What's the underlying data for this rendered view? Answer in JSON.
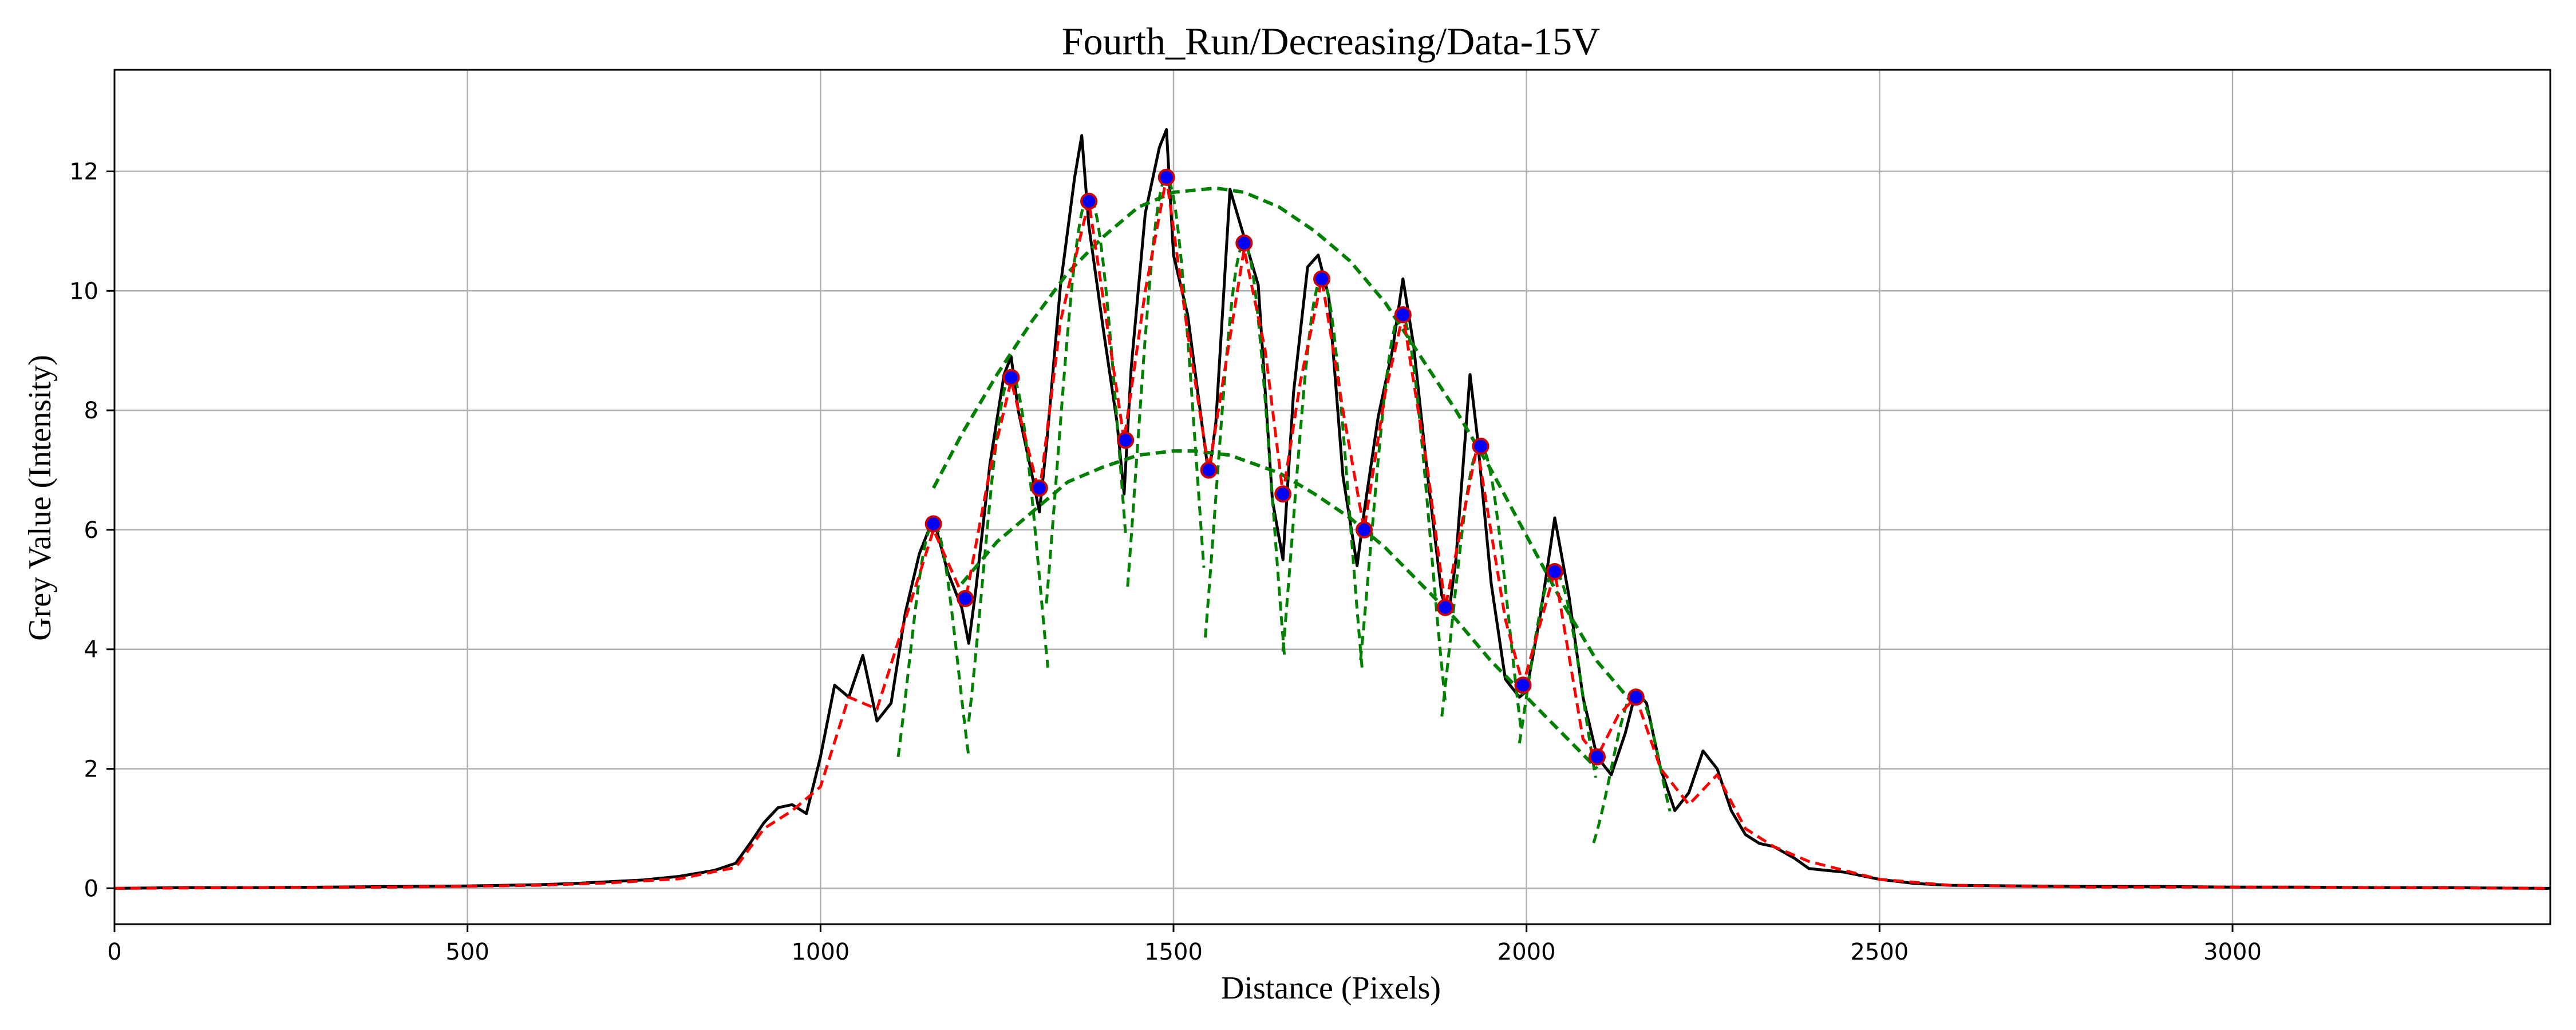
{
  "chart_data": {
    "type": "line",
    "title": "Fourth_Run/Decreasing/Data-15V",
    "xlabel": "Distance (Pixels)",
    "ylabel": "Grey Value (Intensity)",
    "xlim": [
      0,
      3450
    ],
    "ylim": [
      -0.6,
      13.7
    ],
    "grid": true,
    "x_ticks": [
      0,
      500,
      1000,
      1500,
      2000,
      2500,
      3000
    ],
    "x_tick_labels": [
      "0",
      "500",
      "1000",
      "1500",
      "2000",
      "2500",
      "3000"
    ],
    "y_ticks": [
      0,
      2,
      4,
      6,
      8,
      10,
      12
    ],
    "y_tick_labels": [
      "0",
      "2",
      "4",
      "6",
      "8",
      "10",
      "12"
    ],
    "series": [
      {
        "role": "raw_profile",
        "color": "#000000",
        "style": "solid",
        "x": [
          0,
          100,
          200,
          300,
          400,
          500,
          600,
          650,
          700,
          750,
          800,
          850,
          880,
          900,
          920,
          940,
          960,
          980,
          1000,
          1020,
          1040,
          1060,
          1080,
          1100,
          1120,
          1140,
          1160,
          1180,
          1200,
          1210,
          1220,
          1240,
          1260,
          1270,
          1280,
          1300,
          1310,
          1320,
          1340,
          1360,
          1370,
          1380,
          1400,
          1420,
          1430,
          1440,
          1460,
          1480,
          1490,
          1500,
          1520,
          1540,
          1550,
          1560,
          1580,
          1600,
          1620,
          1640,
          1655,
          1670,
          1690,
          1705,
          1720,
          1740,
          1760,
          1770,
          1790,
          1810,
          1825,
          1840,
          1860,
          1880,
          1890,
          1900,
          1920,
          1930,
          1950,
          1970,
          1990,
          2000,
          2020,
          2040,
          2060,
          2080,
          2100,
          2120,
          2140,
          2155,
          2170,
          2190,
          2210,
          2230,
          2250,
          2270,
          2290,
          2310,
          2330,
          2350,
          2380,
          2400,
          2450,
          2500,
          2550,
          2600,
          2700,
          2800,
          2900,
          3000,
          3100,
          3200,
          3300,
          3450
        ],
        "y": [
          0.0,
          0.01,
          0.01,
          0.02,
          0.03,
          0.04,
          0.06,
          0.08,
          0.11,
          0.14,
          0.2,
          0.3,
          0.42,
          0.75,
          1.1,
          1.35,
          1.4,
          1.25,
          2.2,
          3.4,
          3.2,
          3.9,
          2.8,
          3.1,
          4.6,
          5.6,
          6.2,
          5.3,
          4.7,
          4.1,
          5.0,
          7.1,
          8.6,
          8.9,
          8.0,
          6.9,
          6.3,
          7.4,
          10.1,
          11.9,
          12.6,
          11.1,
          9.4,
          7.8,
          6.6,
          8.7,
          11.3,
          12.4,
          12.7,
          10.6,
          9.6,
          7.8,
          6.9,
          7.8,
          11.7,
          10.9,
          10.1,
          6.5,
          5.5,
          8.3,
          10.4,
          10.6,
          9.9,
          6.9,
          5.4,
          6.3,
          7.9,
          9.0,
          10.2,
          9.1,
          6.9,
          4.9,
          4.6,
          5.5,
          8.6,
          7.6,
          5.1,
          3.5,
          3.2,
          3.3,
          4.6,
          6.2,
          4.9,
          3.2,
          2.2,
          1.9,
          2.6,
          3.3,
          3.1,
          2.0,
          1.3,
          1.6,
          2.3,
          2.0,
          1.3,
          0.9,
          0.75,
          0.7,
          0.5,
          0.33,
          0.27,
          0.15,
          0.08,
          0.05,
          0.04,
          0.03,
          0.03,
          0.02,
          0.02,
          0.01,
          0.01,
          0.0
        ]
      },
      {
        "role": "smoothed_profile",
        "color": "#ff0000",
        "style": "dashed",
        "x": [
          0,
          200,
          400,
          600,
          700,
          800,
          880,
          920,
          960,
          1000,
          1040,
          1080,
          1120,
          1160,
          1205,
          1240,
          1270,
          1310,
          1340,
          1380,
          1430,
          1460,
          1490,
          1520,
          1550,
          1600,
          1630,
          1655,
          1680,
          1710,
          1740,
          1770,
          1800,
          1825,
          1860,
          1885,
          1930,
          1970,
          1995,
          2040,
          2080,
          2100,
          2130,
          2155,
          2190,
          2230,
          2270,
          2310,
          2350,
          2400,
          2500,
          2600,
          2800,
          3000,
          3200,
          3450
        ],
        "y": [
          0.0,
          0.01,
          0.02,
          0.05,
          0.09,
          0.16,
          0.35,
          1.0,
          1.3,
          1.7,
          3.2,
          3.0,
          4.5,
          6.0,
          4.8,
          7.0,
          8.5,
          6.6,
          9.5,
          11.5,
          7.5,
          10.0,
          11.9,
          9.3,
          7.0,
          10.7,
          9.0,
          6.6,
          8.5,
          10.2,
          8.0,
          6.0,
          8.3,
          9.6,
          7.0,
          4.7,
          7.4,
          4.5,
          3.4,
          5.3,
          2.5,
          2.2,
          2.9,
          3.2,
          2.0,
          1.4,
          1.9,
          1.0,
          0.7,
          0.45,
          0.15,
          0.05,
          0.02,
          0.02,
          0.01,
          0.0
        ]
      },
      {
        "role": "upper_envelope_fit",
        "color": "#008000",
        "style": "dashed",
        "x": [
          1160,
          1200,
          1250,
          1300,
          1350,
          1400,
          1450,
          1500,
          1560,
          1600,
          1650,
          1700,
          1750,
          1800,
          1850,
          1900,
          1950,
          2000,
          2050,
          2100,
          2150
        ],
        "y": [
          6.7,
          7.6,
          8.6,
          9.5,
          10.3,
          10.9,
          11.4,
          11.65,
          11.72,
          11.65,
          11.4,
          11.0,
          10.5,
          9.8,
          8.9,
          8.0,
          7.0,
          5.9,
          4.8,
          3.8,
          3.1
        ]
      },
      {
        "role": "lower_envelope_fit",
        "color": "#008000",
        "style": "dashed",
        "x": [
          1200,
          1250,
          1300,
          1350,
          1400,
          1450,
          1500,
          1530,
          1580,
          1650,
          1700,
          1750,
          1800,
          1850,
          1900,
          1950,
          2000,
          2050,
          2100
        ],
        "y": [
          5.1,
          5.8,
          6.3,
          6.8,
          7.05,
          7.25,
          7.32,
          7.32,
          7.25,
          6.95,
          6.6,
          6.2,
          5.7,
          5.1,
          4.5,
          3.8,
          3.2,
          2.6,
          2.0
        ]
      }
    ],
    "peak_fits": {
      "color": "#008000",
      "style": "dashed",
      "curves": [
        {
          "center": 1380,
          "height": 11.6,
          "width": 45,
          "x_range": [
            1320,
            1435
          ]
        },
        {
          "center": 1490,
          "height": 11.9,
          "width": 42,
          "x_range": [
            1435,
            1545
          ]
        },
        {
          "center": 1600,
          "height": 10.8,
          "width": 40,
          "x_range": [
            1545,
            1660
          ]
        },
        {
          "center": 1710,
          "height": 10.2,
          "width": 40,
          "x_range": [
            1655,
            1770
          ]
        },
        {
          "center": 1822,
          "height": 9.6,
          "width": 42,
          "x_range": [
            1765,
            1885
          ]
        },
        {
          "center": 1935,
          "height": 7.4,
          "width": 40,
          "x_range": [
            1880,
            1995
          ]
        },
        {
          "center": 2040,
          "height": 5.3,
          "width": 40,
          "x_range": [
            1990,
            2100
          ]
        },
        {
          "center": 2155,
          "height": 3.3,
          "width": 35,
          "x_range": [
            2095,
            2205
          ]
        },
        {
          "center": 1270,
          "height": 8.6,
          "width": 40,
          "x_range": [
            1210,
            1325
          ]
        },
        {
          "center": 1160,
          "height": 6.1,
          "width": 35,
          "x_range": [
            1110,
            1210
          ]
        }
      ]
    },
    "markers": {
      "color": "#0000ff",
      "edge_color": "#cc0000",
      "points": [
        {
          "x": 1160,
          "y": 6.1
        },
        {
          "x": 1205,
          "y": 4.85
        },
        {
          "x": 1270,
          "y": 8.55
        },
        {
          "x": 1310,
          "y": 6.7
        },
        {
          "x": 1380,
          "y": 11.5
        },
        {
          "x": 1432,
          "y": 7.5
        },
        {
          "x": 1490,
          "y": 11.9
        },
        {
          "x": 1550,
          "y": 7.0
        },
        {
          "x": 1600,
          "y": 10.8
        },
        {
          "x": 1655,
          "y": 6.6
        },
        {
          "x": 1710,
          "y": 10.2
        },
        {
          "x": 1770,
          "y": 6.0
        },
        {
          "x": 1825,
          "y": 9.6
        },
        {
          "x": 1885,
          "y": 4.7
        },
        {
          "x": 1935,
          "y": 7.4
        },
        {
          "x": 1995,
          "y": 3.4
        },
        {
          "x": 2040,
          "y": 5.3
        },
        {
          "x": 2100,
          "y": 2.2
        },
        {
          "x": 2155,
          "y": 3.2
        }
      ]
    }
  }
}
